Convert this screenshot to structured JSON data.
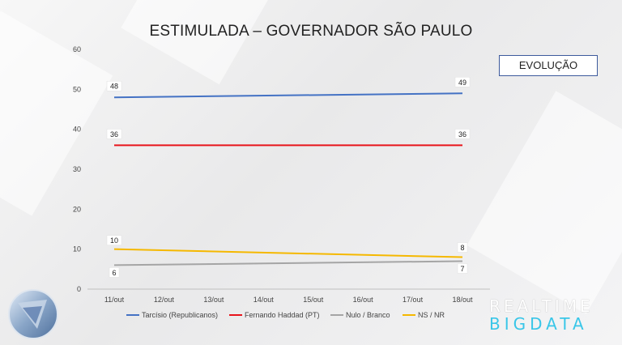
{
  "evolution_label": "EVOLUÇÃO",
  "brand": {
    "line1": "REALTIME",
    "line2": "BIGDATA"
  },
  "chart_data": {
    "type": "line",
    "title": "ESTIMULADA – GOVERNADOR SÃO PAULO",
    "categories": [
      "11/out",
      "12/out",
      "13/out",
      "14/out",
      "15/out",
      "16/out",
      "17/out",
      "18/out"
    ],
    "ylim": [
      0,
      60
    ],
    "yticks": [
      0,
      10,
      20,
      30,
      40,
      50,
      60
    ],
    "grid": false,
    "legend_position": "bottom",
    "series": [
      {
        "name": "Tarcísio (Republicanos)",
        "color": "#4472c4",
        "values": [
          48,
          null,
          null,
          null,
          null,
          null,
          null,
          49
        ],
        "labels": [
          "48",
          "49"
        ]
      },
      {
        "name": "Fernando Haddad (PT)",
        "color": "#e8141b",
        "values": [
          36,
          null,
          null,
          null,
          null,
          null,
          null,
          36
        ],
        "labels": [
          "36",
          "36"
        ]
      },
      {
        "name": "Nulo / Branco",
        "color": "#a5a5a5",
        "values": [
          6,
          null,
          null,
          null,
          null,
          null,
          null,
          7
        ],
        "labels": [
          "6",
          "7"
        ]
      },
      {
        "name": "NS / NR",
        "color": "#f5b800",
        "values": [
          10,
          null,
          null,
          null,
          null,
          null,
          null,
          8
        ],
        "labels": [
          "10",
          "8"
        ]
      }
    ]
  }
}
